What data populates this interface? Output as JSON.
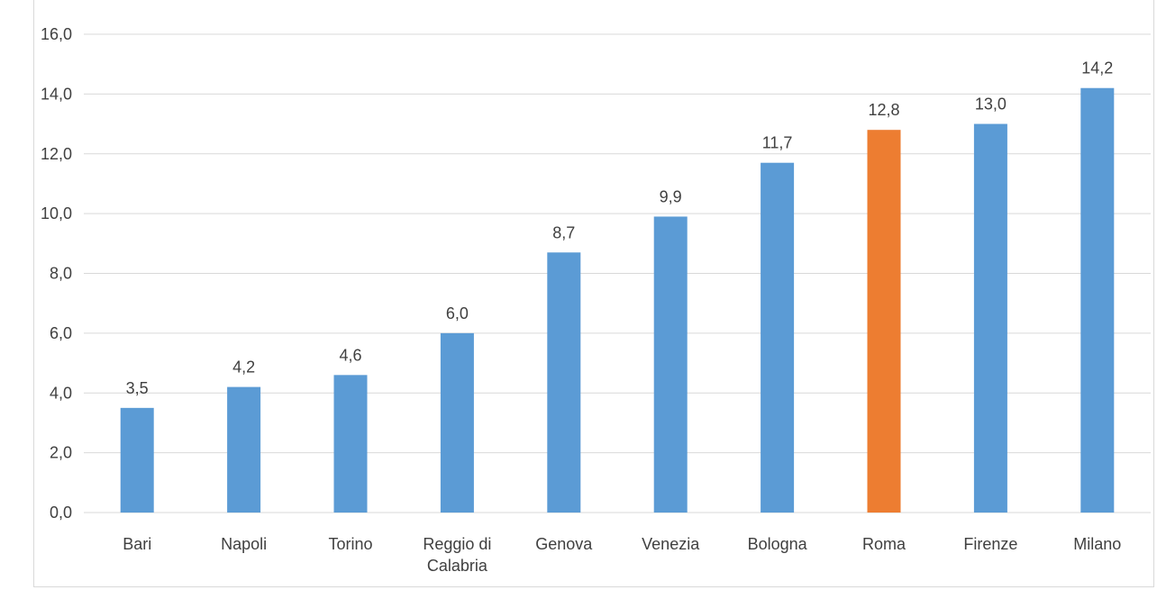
{
  "chart_data": {
    "type": "bar",
    "categories": [
      "Bari",
      "Napoli",
      "Torino",
      [
        "Reggio di",
        "Calabria"
      ],
      "Genova",
      "Venezia",
      "Bologna",
      "Roma",
      "Firenze",
      "Milano"
    ],
    "values": [
      3.5,
      4.2,
      4.6,
      6.0,
      8.7,
      9.9,
      11.7,
      12.8,
      13.0,
      14.2
    ],
    "value_labels": [
      "3,5",
      "4,2",
      "4,6",
      "6,0",
      "8,7",
      "9,9",
      "11,7",
      "12,8",
      "13,0",
      "14,2"
    ],
    "ylim": [
      0,
      16
    ],
    "yticks": [
      0,
      2,
      4,
      6,
      8,
      10,
      12,
      14,
      16
    ],
    "ytick_labels": [
      "0,0",
      "2,0",
      "4,0",
      "6,0",
      "8,0",
      "10,0",
      "12,0",
      "14,0",
      "16,0"
    ],
    "grid": true,
    "legend": "none",
    "colors": {
      "bar": "#5b9bd5",
      "highlight": "#ed7d31",
      "grid": "#d9d9d9",
      "text": "#404040"
    },
    "highlight_category": "Roma"
  }
}
